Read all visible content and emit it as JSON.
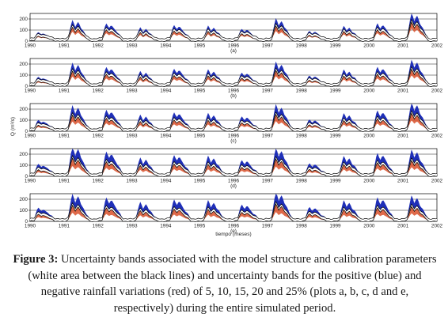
{
  "chart_data": [
    {
      "type": "area",
      "label": "(a)",
      "variation_percent": 5,
      "x_range": [
        1990,
        2002
      ],
      "x_ticks": [
        "1990",
        "1991",
        "1992",
        "1993",
        "1994",
        "1995",
        "1996",
        "1997",
        "1998",
        "1999",
        "2000",
        "2001",
        "2002"
      ],
      "y_ticks": [
        "0",
        "100",
        "200"
      ],
      "ylim": [
        0,
        250
      ],
      "peaks_approx": [
        60,
        140,
        120,
        90,
        110,
        100,
        85,
        150,
        70,
        100,
        120,
        190,
        115
      ]
    },
    {
      "type": "area",
      "label": "(b)",
      "variation_percent": 10,
      "x_range": [
        1990,
        2002
      ],
      "x_ticks": [
        "1990",
        "1991",
        "1992",
        "1993",
        "1994",
        "1995",
        "1996",
        "1997",
        "1998",
        "1999",
        "2000",
        "2001",
        "2002"
      ],
      "y_ticks": [
        "0",
        "100",
        "200"
      ],
      "ylim": [
        0,
        250
      ],
      "peaks_approx": [
        60,
        150,
        125,
        95,
        115,
        105,
        90,
        155,
        70,
        105,
        125,
        170,
        120
      ]
    },
    {
      "type": "area",
      "label": "(c)",
      "variation_percent": 15,
      "x_range": [
        1990,
        2002
      ],
      "x_ticks": [
        "1990",
        "1991",
        "1992",
        "1993",
        "1994",
        "1995",
        "1996",
        "1997",
        "1998",
        "1999",
        "2000",
        "2001",
        "2002"
      ],
      "y_ticks": [
        "0",
        "100",
        "200"
      ],
      "ylim": [
        0,
        250
      ],
      "peaks_approx": [
        70,
        160,
        135,
        100,
        120,
        110,
        95,
        165,
        75,
        110,
        130,
        180,
        130
      ]
    },
    {
      "type": "area",
      "label": "(d)",
      "variation_percent": 20,
      "x_range": [
        1990,
        2002
      ],
      "x_ticks": [
        "1990",
        "1991",
        "1992",
        "1993",
        "1994",
        "1995",
        "1996",
        "1997",
        "1998",
        "1999",
        "2000",
        "2001",
        "2002"
      ],
      "y_ticks": [
        "0",
        "100",
        "200"
      ],
      "ylim": [
        0,
        250
      ],
      "peaks_approx": [
        75,
        180,
        150,
        110,
        130,
        120,
        100,
        170,
        80,
        120,
        140,
        160,
        170
      ]
    },
    {
      "type": "area",
      "label": "(e)",
      "variation_percent": 25,
      "x_range": [
        1990,
        2002
      ],
      "x_ticks": [
        "1990",
        "1991",
        "1992",
        "1993",
        "1994",
        "1995",
        "1996",
        "1997",
        "1998",
        "1999",
        "2000",
        "2001",
        "2002"
      ],
      "y_ticks": [
        "0",
        "100",
        "200"
      ],
      "ylim": [
        0,
        250
      ],
      "peaks_approx": [
        80,
        160,
        140,
        110,
        130,
        120,
        100,
        170,
        85,
        120,
        140,
        150,
        160
      ]
    }
  ],
  "axes": {
    "ylabel": "Q (m³/s)",
    "xlabel": "tiempo (meses)"
  },
  "colors": {
    "positive_band": "#1f2fb8",
    "negative_band": "#d9502a",
    "model_bounds": "#000000"
  },
  "caption": {
    "label": "Figure 3:",
    "text": " Uncertainty bands associated with the model structure and calibration parameters (white area between the black lines) and uncertainty bands for the positive (blue) and negative rainfall variations (red) of 5, 10, 15, 20 and 25% (plots a, b, c, d and e, respectively) during the entire simulated period."
  }
}
